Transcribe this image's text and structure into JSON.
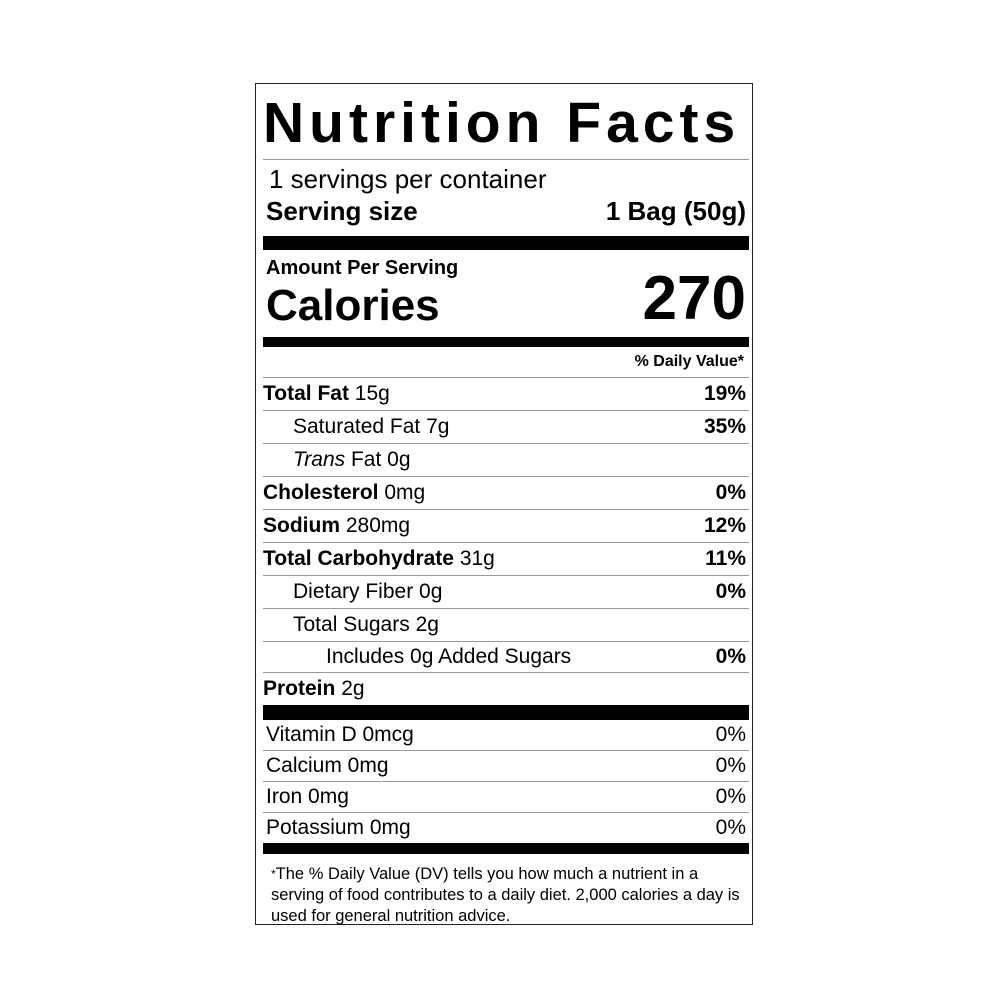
{
  "title": "Nutrition Facts",
  "servings_per_container": "1 servings per container",
  "serving_size": {
    "label": "Serving size",
    "value": "1 Bag (50g)"
  },
  "amount_per_serving": "Amount Per Serving",
  "calories": {
    "label": "Calories",
    "value": "270"
  },
  "daily_value_header": "% Daily Value*",
  "nutrients": [
    {
      "name": "Total Fat",
      "amount": "15g",
      "dv": "19%"
    },
    {
      "name": "Saturated Fat",
      "amount": "7g",
      "dv": "35%"
    },
    {
      "name_italic": "Trans",
      "name": "Fat",
      "amount": "0g",
      "dv": ""
    },
    {
      "name": "Cholesterol",
      "amount": "0mg",
      "dv": "0%"
    },
    {
      "name": "Sodium",
      "amount": "280mg",
      "dv": "12%"
    },
    {
      "name": "Total Carbohydrate",
      "amount": "31g",
      "dv": "11%"
    },
    {
      "name": "Dietary Fiber",
      "amount": "0g",
      "dv": "0%"
    },
    {
      "name": "Total Sugars",
      "amount": "2g",
      "dv": ""
    },
    {
      "name": "Includes 0g Added Sugars",
      "amount": "",
      "dv": "0%"
    },
    {
      "name": "Protein",
      "amount": "2g",
      "dv": ""
    }
  ],
  "vitamins": [
    {
      "name": "Vitamin D 0mcg",
      "dv": "0%"
    },
    {
      "name": "Calcium 0mg",
      "dv": "0%"
    },
    {
      "name": "Iron 0mg",
      "dv": "0%"
    },
    {
      "name": "Potassium 0mg",
      "dv": "0%"
    }
  ],
  "footnote": {
    "star": "*",
    "text": "The % Daily Value (DV) tells you how much a nutrient in a serving of food contributes to a daily diet. 2,000 calories a day is used for general nutrition advice."
  }
}
